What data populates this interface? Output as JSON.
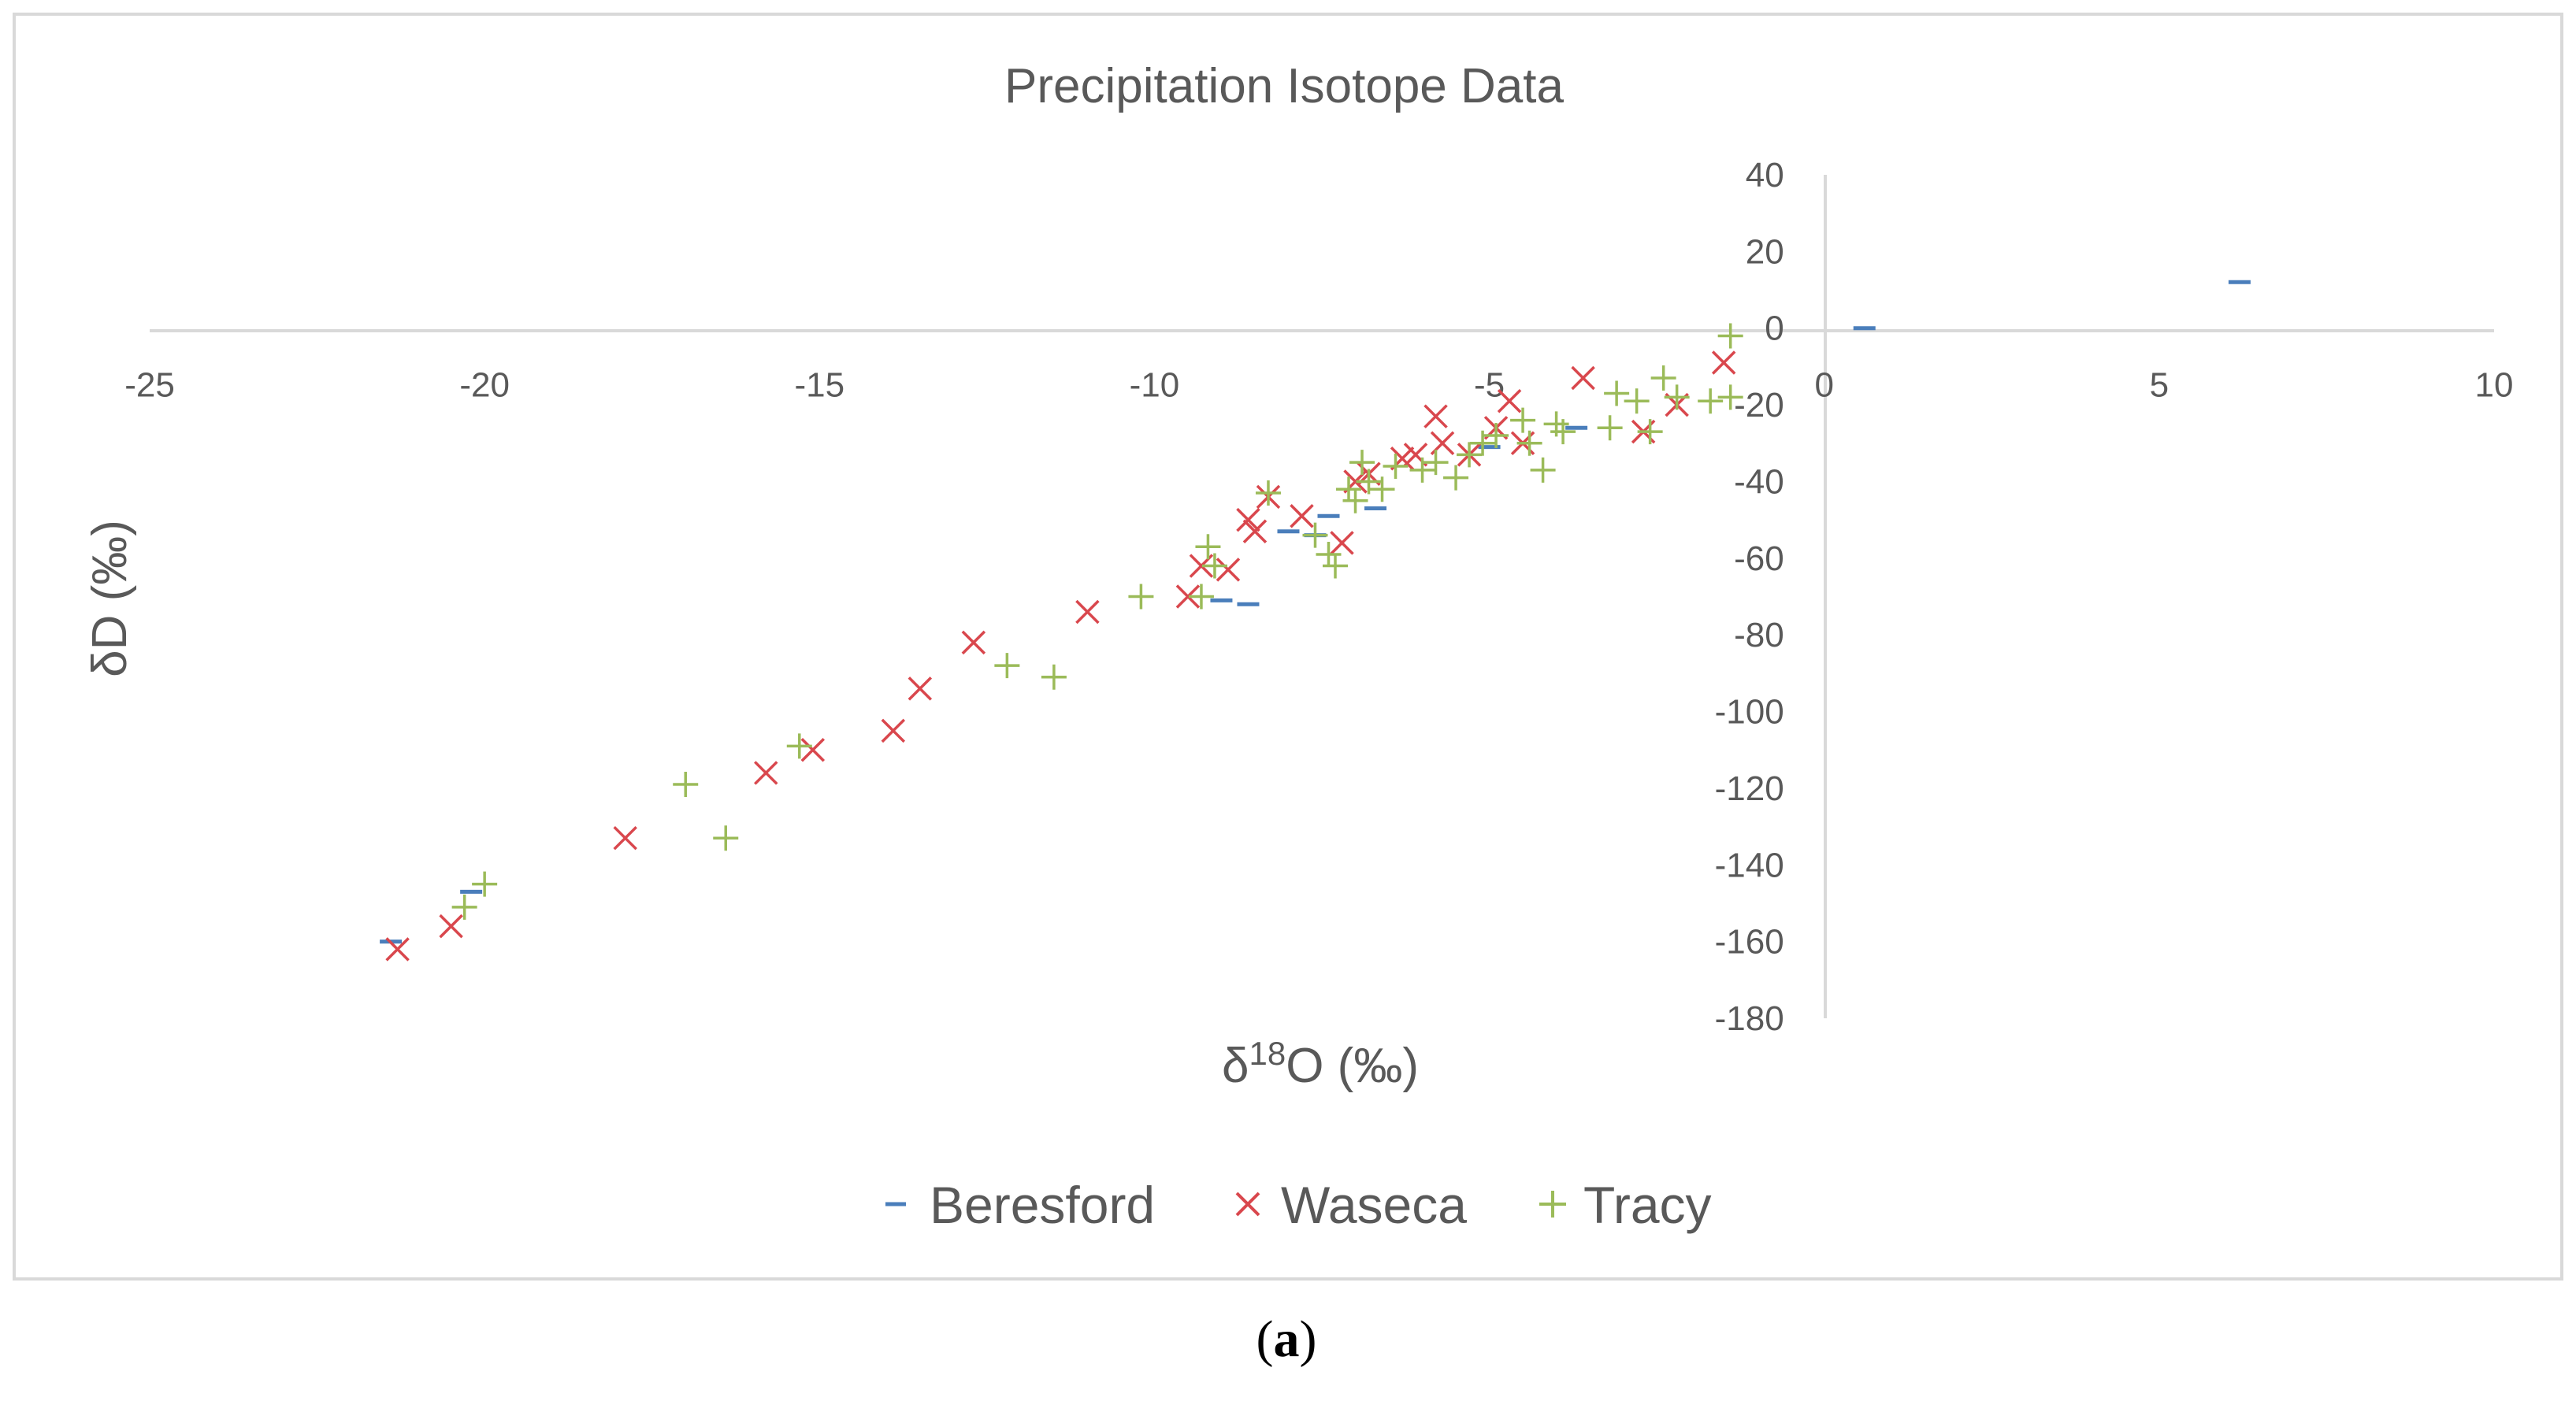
{
  "colors": {
    "Beresford": "#4a7ebb",
    "Waseca": "#d9474d",
    "Tracy": "#9bbb59",
    "text": "#595959",
    "axis": "#d9d9d9",
    "border": "#d9d9d9"
  },
  "caption": {
    "open": "(",
    "letter": "a",
    "close": ")"
  },
  "chart_data": {
    "type": "scatter",
    "title": "Precipitation Isotope Data",
    "xlabel": {
      "prefix": "δ",
      "superscript": "18",
      "suffix": "O (‰)"
    },
    "ylabel": "δD (‰)",
    "xlim": [
      -25,
      10
    ],
    "ylim": [
      -180,
      40
    ],
    "xticks": [
      -25,
      -20,
      -15,
      -10,
      -5,
      0,
      5,
      10
    ],
    "yticks": [
      40,
      20,
      0,
      -20,
      -40,
      -60,
      -80,
      -100,
      -120,
      -140,
      -160,
      -180
    ],
    "legend_position": "bottom",
    "series": [
      {
        "name": "Beresford",
        "marker": "dash",
        "points": [
          [
            -21.4,
            -160
          ],
          [
            -20.2,
            -147
          ],
          [
            -9.0,
            -71
          ],
          [
            -8.6,
            -72
          ],
          [
            -8.0,
            -53
          ],
          [
            -7.6,
            -54
          ],
          [
            -7.4,
            -49
          ],
          [
            -6.7,
            -47
          ],
          [
            -5.0,
            -31
          ],
          [
            -3.7,
            -26
          ],
          [
            0.6,
            0
          ],
          [
            6.2,
            12
          ]
        ]
      },
      {
        "name": "Waseca",
        "marker": "x",
        "points": [
          [
            -21.3,
            -162
          ],
          [
            -20.5,
            -156
          ],
          [
            -17.9,
            -133
          ],
          [
            -15.8,
            -116
          ],
          [
            -15.1,
            -110
          ],
          [
            -13.9,
            -105
          ],
          [
            -13.5,
            -94
          ],
          [
            -12.7,
            -82
          ],
          [
            -11.0,
            -74
          ],
          [
            -9.5,
            -70
          ],
          [
            -9.3,
            -62
          ],
          [
            -8.9,
            -63
          ],
          [
            -8.6,
            -50
          ],
          [
            -8.5,
            -53
          ],
          [
            -8.3,
            -44
          ],
          [
            -7.8,
            -49
          ],
          [
            -7.2,
            -56
          ],
          [
            -7.0,
            -40
          ],
          [
            -6.8,
            -38
          ],
          [
            -6.3,
            -34
          ],
          [
            -6.1,
            -33
          ],
          [
            -5.8,
            -23
          ],
          [
            -5.7,
            -30
          ],
          [
            -5.3,
            -33
          ],
          [
            -4.9,
            -26
          ],
          [
            -4.7,
            -19
          ],
          [
            -4.5,
            -30
          ],
          [
            -3.6,
            -13
          ],
          [
            -2.7,
            -27
          ],
          [
            -2.2,
            -20
          ],
          [
            -1.5,
            -9
          ]
        ]
      },
      {
        "name": "Tracy",
        "marker": "plus",
        "points": [
          [
            -20.3,
            -151
          ],
          [
            -20.0,
            -145
          ],
          [
            -17.0,
            -119
          ],
          [
            -16.4,
            -133
          ],
          [
            -15.3,
            -109
          ],
          [
            -12.2,
            -88
          ],
          [
            -11.5,
            -91
          ],
          [
            -10.2,
            -70
          ],
          [
            -9.3,
            -70
          ],
          [
            -9.2,
            -57
          ],
          [
            -9.1,
            -62
          ],
          [
            -8.3,
            -43
          ],
          [
            -7.6,
            -54
          ],
          [
            -7.4,
            -59
          ],
          [
            -7.3,
            -62
          ],
          [
            -7.1,
            -42
          ],
          [
            -7.0,
            -45
          ],
          [
            -6.9,
            -35
          ],
          [
            -6.8,
            -40
          ],
          [
            -6.6,
            -42
          ],
          [
            -6.4,
            -36
          ],
          [
            -6.0,
            -37
          ],
          [
            -5.8,
            -35
          ],
          [
            -5.5,
            -39
          ],
          [
            -5.3,
            -33
          ],
          [
            -5.1,
            -30
          ],
          [
            -4.9,
            -28
          ],
          [
            -4.5,
            -24
          ],
          [
            -4.4,
            -30
          ],
          [
            -4.2,
            -37
          ],
          [
            -4.0,
            -25
          ],
          [
            -3.9,
            -27
          ],
          [
            -3.2,
            -26
          ],
          [
            -3.1,
            -17
          ],
          [
            -2.8,
            -19
          ],
          [
            -2.6,
            -27
          ],
          [
            -2.4,
            -13
          ],
          [
            -2.2,
            -18
          ],
          [
            -1.7,
            -19
          ],
          [
            -1.4,
            -18
          ],
          [
            -1.4,
            -2
          ]
        ]
      }
    ]
  }
}
